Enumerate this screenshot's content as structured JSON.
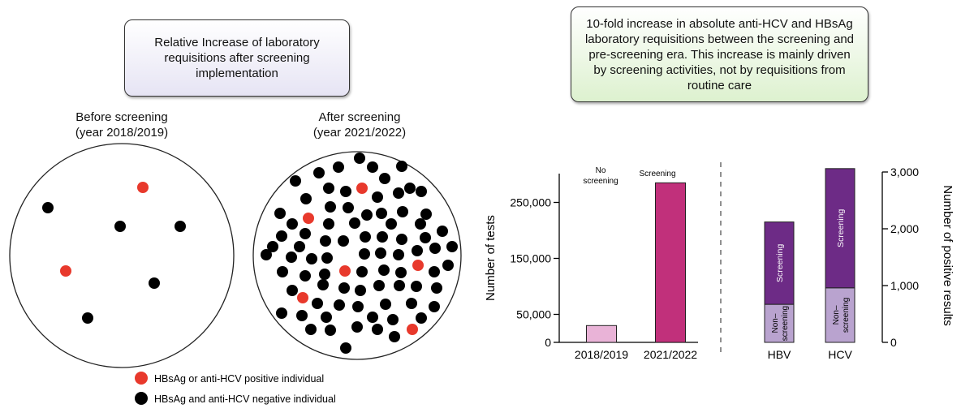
{
  "callouts": {
    "left": "Relative Increase of laboratory requisitions after screening implementation",
    "right": "10-fold increase in absolute anti-HCV and HBsAg laboratory requisitions between the screening and pre-screening era. This increase is mainly driven by screening activities, not by requisitions from routine care"
  },
  "circles": {
    "before": {
      "title_line1": "Before screening",
      "title_line2": "(year 2018/2019)"
    },
    "after": {
      "title_line1": "After screening",
      "title_line2": "(year 2021/2022)"
    }
  },
  "legend": {
    "positive": {
      "label": "HBsAg or anti-HCV positive individual",
      "color": "#e8392c"
    },
    "negative": {
      "label": "HBsAg and anti-HCV negative individual",
      "color": "#000000"
    }
  },
  "chart_data": [
    {
      "type": "bar",
      "categories": [
        "2018/2019",
        "2021/2022"
      ],
      "values": [
        30000,
        285000
      ],
      "bar_labels": [
        "No screening",
        "Screening"
      ],
      "colors": [
        "#e9b3d7",
        "#c1307b"
      ],
      "ylabel": "Number of tests",
      "ylim": [
        0,
        300000
      ],
      "yticks": [
        0,
        50000,
        150000,
        250000
      ],
      "ytick_labels": [
        "0",
        "50,000",
        "150,000",
        "250,000"
      ]
    },
    {
      "type": "bar",
      "stacked": true,
      "categories": [
        "HBV",
        "HCV"
      ],
      "series": [
        {
          "name": "Non–screening",
          "values": [
            670,
            960
          ],
          "color": "#b9a3cf"
        },
        {
          "name": "Screening",
          "values": [
            1450,
            2100
          ],
          "color": "#6d2b86"
        }
      ],
      "ylabel": "Number of positive results",
      "ylim": [
        0,
        3000
      ],
      "yticks": [
        0,
        1000,
        2000,
        3000
      ],
      "ytick_labels": [
        "0",
        "1,000",
        "2,000",
        "3,000"
      ]
    }
  ]
}
